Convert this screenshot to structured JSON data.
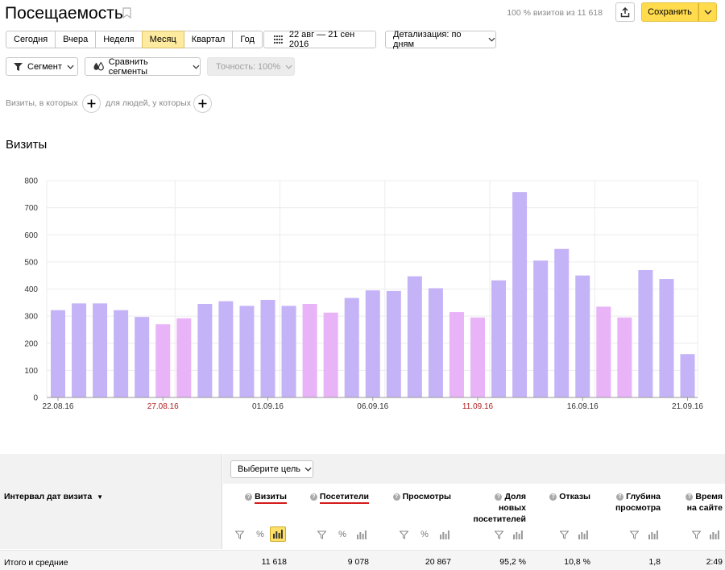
{
  "header": {
    "title": "Посещаемость",
    "visits_summary": "100 % визитов из 11 618",
    "save_label": "Сохранить"
  },
  "period": {
    "buttons": [
      "Сегодня",
      "Вчера",
      "Неделя",
      "Месяц",
      "Квартал",
      "Год"
    ],
    "active": "Месяц"
  },
  "date_range": "22 авг — 21 сен 2016",
  "detail_label": "Детализация: по дням",
  "segment_label": "Сегмент",
  "compare_label": "Сравнить сегменты",
  "accuracy_label": "Точность: 100%",
  "conditions": {
    "visits_label": "Визиты, в которых",
    "people_label": "для людей, у которых"
  },
  "chart_title": "Визиты",
  "chart_data": {
    "type": "bar",
    "title": "Визиты",
    "x": [
      "22.08.16",
      "23.08.16",
      "24.08.16",
      "25.08.16",
      "26.08.16",
      "27.08.16",
      "28.08.16",
      "29.08.16",
      "30.08.16",
      "31.08.16",
      "01.09.16",
      "02.09.16",
      "03.09.16",
      "04.09.16",
      "05.09.16",
      "06.09.16",
      "07.09.16",
      "08.09.16",
      "09.09.16",
      "10.09.16",
      "11.09.16",
      "12.09.16",
      "13.09.16",
      "14.09.16",
      "15.09.16",
      "16.09.16",
      "17.09.16",
      "18.09.16",
      "19.09.16",
      "20.09.16",
      "21.09.16"
    ],
    "values": [
      322,
      347,
      347,
      322,
      297,
      270,
      292,
      345,
      355,
      338,
      360,
      338,
      345,
      313,
      367,
      395,
      393,
      447,
      403,
      315,
      295,
      432,
      758,
      505,
      548,
      450,
      335,
      295,
      470,
      437,
      160
    ],
    "weekend": [
      false,
      false,
      false,
      false,
      false,
      true,
      true,
      false,
      false,
      false,
      false,
      false,
      true,
      true,
      false,
      false,
      false,
      false,
      false,
      true,
      true,
      false,
      false,
      false,
      false,
      false,
      true,
      true,
      false,
      false,
      false
    ],
    "tick_labels": [
      {
        "label": "22.08.16",
        "index": 0,
        "weekend": false
      },
      {
        "label": "27.08.16",
        "index": 5,
        "weekend": true
      },
      {
        "label": "01.09.16",
        "index": 10,
        "weekend": false
      },
      {
        "label": "06.09.16",
        "index": 15,
        "weekend": false
      },
      {
        "label": "11.09.16",
        "index": 20,
        "weekend": true
      },
      {
        "label": "16.09.16",
        "index": 25,
        "weekend": false
      },
      {
        "label": "21.09.16",
        "index": 30,
        "weekend": false
      }
    ],
    "y_ticks": [
      0,
      100,
      200,
      300,
      400,
      500,
      600,
      700,
      800
    ],
    "ylim": [
      0,
      800
    ],
    "grid": true,
    "colors": {
      "weekday": "#c5b3f7",
      "weekend": "#e9b3f7",
      "weekend_label": "#b22222"
    }
  },
  "table": {
    "goal_label": "Выберите цель",
    "interval_header": "Интервал дат визита",
    "total_label": "Итого и средние",
    "columns": [
      {
        "name": "Визиты",
        "total": "11 618"
      },
      {
        "name": "Посетители",
        "total": "9 078"
      },
      {
        "name": "Просмотры",
        "total": "20 867"
      },
      {
        "name": "Доля новых посетителей",
        "total": "95,2 %"
      },
      {
        "name": "Отказы",
        "total": "10,8 %"
      },
      {
        "name": "Глубина просмотра",
        "total": "1,8"
      },
      {
        "name": "Время на сайте",
        "total": "2:49"
      }
    ]
  }
}
